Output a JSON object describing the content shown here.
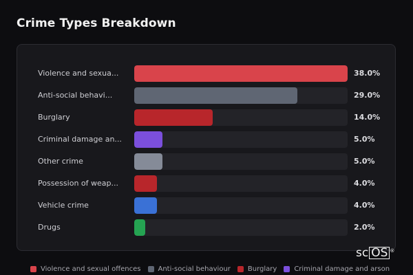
{
  "page": {
    "title": "Crime Types Breakdown",
    "logo_text_left": "sc",
    "logo_text_right": "OS",
    "logo_mark": "®"
  },
  "chart_data": {
    "type": "bar",
    "orientation": "horizontal",
    "title": "Crime Types Breakdown",
    "xlim": [
      0,
      38
    ],
    "categories": [
      "Violence and sexua...",
      "Anti-social behavi...",
      "Burglary",
      "Criminal damage an...",
      "Other crime",
      "Possession of weap...",
      "Vehicle crime",
      "Drugs"
    ],
    "values": [
      38.0,
      29.0,
      14.0,
      5.0,
      5.0,
      4.0,
      4.0,
      2.0
    ],
    "value_labels": [
      "38.0%",
      "29.0%",
      "14.0%",
      "5.0%",
      "5.0%",
      "4.0%",
      "4.0%",
      "2.0%"
    ],
    "colors": [
      "#d9444b",
      "#5f6673",
      "#b8262b",
      "#7b4fdc",
      "#858b98",
      "#b8262b",
      "#3a71d6",
      "#25a352"
    ],
    "legend": [
      {
        "label": "Violence and sexual offences",
        "color": "#d9444b"
      },
      {
        "label": "Anti-social behaviour",
        "color": "#5f6673"
      },
      {
        "label": "Burglary",
        "color": "#b8262b"
      },
      {
        "label": "Criminal damage and arson",
        "color": "#7b4fdc"
      }
    ],
    "legend_position": "bottom",
    "grid": false
  }
}
